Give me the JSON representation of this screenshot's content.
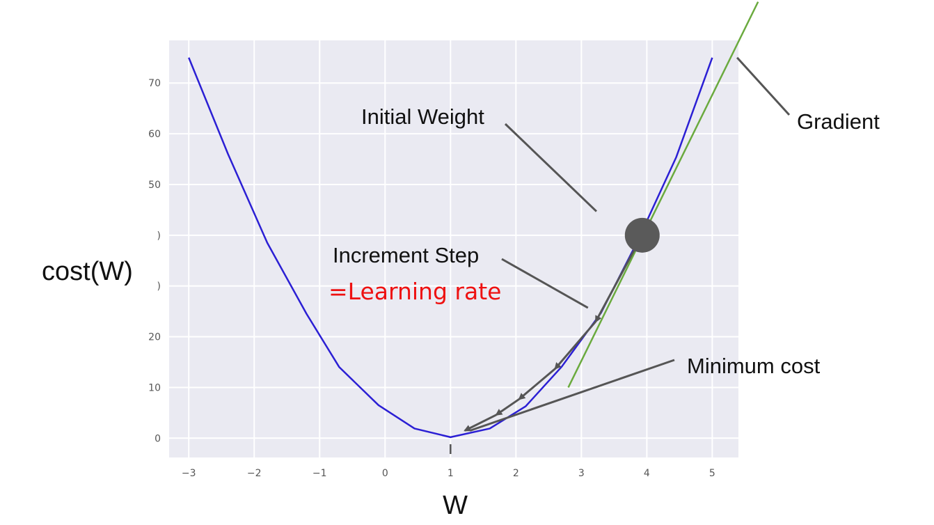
{
  "chart_data": {
    "type": "line",
    "title": "",
    "xlabel": "W",
    "ylabel": "cost(W)",
    "xlim": [
      -3.3,
      5.4
    ],
    "ylim": [
      -3.8,
      78.4
    ],
    "x_ticks": [
      -3,
      -2,
      -1,
      0,
      1,
      2,
      3,
      4,
      5
    ],
    "y_ticks": [
      0,
      10,
      20,
      30,
      40,
      50,
      60,
      70
    ],
    "y_tick_labels": [
      "0",
      "10",
      "20",
      ")",
      ")",
      "50",
      "60",
      "70"
    ],
    "grid": true,
    "series": [
      {
        "color": "#2b1fd4",
        "x": [
          -3,
          -2.4,
          -1.8,
          -1.2,
          -0.7,
          -0.1,
          0.45,
          1.0,
          1.6,
          2.15,
          2.7,
          3.3,
          3.85,
          4.45,
          5.0
        ],
        "y": [
          75,
          56,
          38.5,
          24.5,
          14,
          6.5,
          1.9,
          0.2,
          1.9,
          6.3,
          14.1,
          24.7,
          38.6,
          55.4,
          75
        ]
      }
    ],
    "tangent": {
      "color": "#6aaa3e",
      "x": [
        2.8,
        5.7
      ],
      "y": [
        10,
        86
      ]
    },
    "ball": {
      "x": 3.93,
      "y": 40,
      "color": "#5a5a5a"
    },
    "step_arrows": [
      {
        "from": [
          3.93,
          40
        ],
        "to": [
          3.22,
          23.0
        ]
      },
      {
        "from": [
          3.22,
          23.0
        ],
        "to": [
          2.6,
          13.7
        ]
      },
      {
        "from": [
          2.6,
          13.7
        ],
        "to": [
          2.05,
          7.7
        ]
      },
      {
        "from": [
          2.05,
          7.7
        ],
        "to": [
          1.7,
          4.6
        ]
      },
      {
        "from": [
          1.7,
          4.6
        ],
        "to": [
          1.22,
          1.5
        ]
      }
    ],
    "min_marker": {
      "x": 1.0
    },
    "annotations": [
      {
        "key": "initial",
        "text": "Initial Weight",
        "to": [
          3.23,
          44.7
        ]
      },
      {
        "key": "step",
        "text": "Increment Step",
        "to": [
          3.1,
          25.7
        ]
      },
      {
        "key": "lr",
        "text": "=Learning rate",
        "color": "#ee1111"
      },
      {
        "key": "min",
        "text": "Minimum cost",
        "to": [
          1.3,
          1.5
        ]
      },
      {
        "key": "grad",
        "text": "Gradient",
        "to": [
          5.38,
          75
        ]
      }
    ]
  }
}
